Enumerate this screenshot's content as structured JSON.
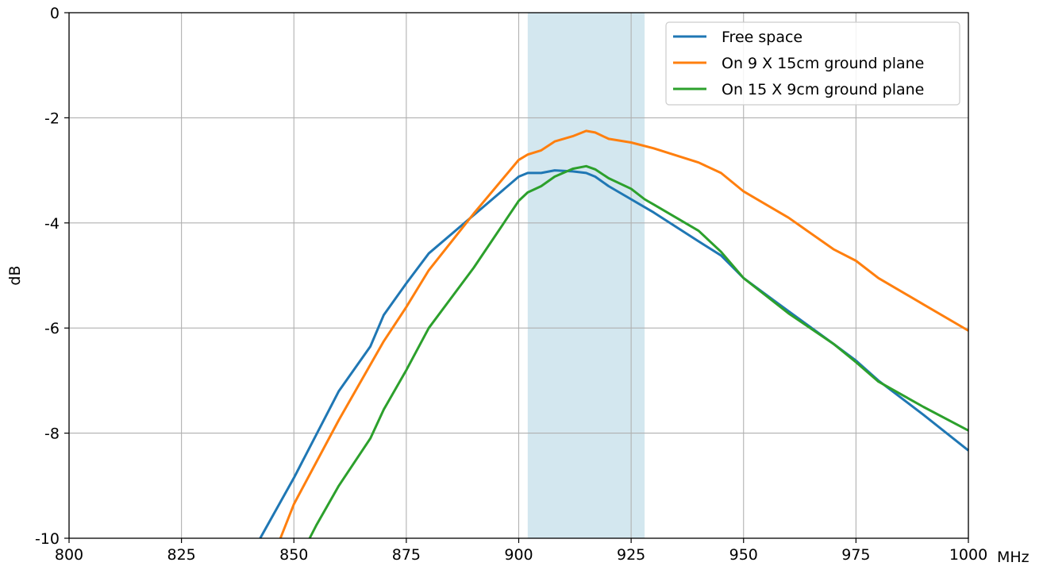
{
  "chart_data": {
    "type": "line",
    "title": "",
    "xlabel": "",
    "ylabel": "dB",
    "x_unit": "MHz",
    "xlim": [
      800,
      1000
    ],
    "ylim": [
      -10,
      0
    ],
    "x_ticks": [
      "800",
      "825",
      "850",
      "875",
      "900",
      "925",
      "950",
      "975",
      "1000"
    ],
    "x_tick_values": [
      800,
      825,
      850,
      875,
      900,
      925,
      950,
      975,
      1000
    ],
    "y_ticks": [
      "0",
      "-2",
      "-4",
      "-6",
      "-8",
      "-10"
    ],
    "y_tick_values": [
      0,
      -2,
      -4,
      -6,
      -8,
      -10
    ],
    "grid": true,
    "legend_position": "top-right",
    "highlight_band": {
      "x_start": 902,
      "x_end": 928,
      "color": "#d3e7ef"
    },
    "series": [
      {
        "name": "Free space",
        "color": "#1f77b4",
        "points": [
          [
            842.5,
            -10
          ],
          [
            850,
            -8.85
          ],
          [
            860,
            -7.2
          ],
          [
            867,
            -6.35
          ],
          [
            870,
            -5.75
          ],
          [
            875,
            -5.15
          ],
          [
            880,
            -4.58
          ],
          [
            890,
            -3.85
          ],
          [
            900,
            -3.12
          ],
          [
            902,
            -3.05
          ],
          [
            905,
            -3.05
          ],
          [
            908,
            -3.0
          ],
          [
            912,
            -3.02
          ],
          [
            915,
            -3.05
          ],
          [
            917,
            -3.12
          ],
          [
            920,
            -3.3
          ],
          [
            925,
            -3.55
          ],
          [
            930,
            -3.8
          ],
          [
            940,
            -4.35
          ],
          [
            945,
            -4.62
          ],
          [
            950,
            -5.05
          ],
          [
            960,
            -5.68
          ],
          [
            970,
            -6.3
          ],
          [
            975,
            -6.62
          ],
          [
            980,
            -7.0
          ],
          [
            990,
            -7.65
          ],
          [
            1000,
            -8.33
          ]
        ]
      },
      {
        "name": "On 9 X 15cm ground plane",
        "color": "#ff7f0e",
        "points": [
          [
            847,
            -10
          ],
          [
            850,
            -9.35
          ],
          [
            860,
            -7.75
          ],
          [
            870,
            -6.25
          ],
          [
            875,
            -5.6
          ],
          [
            880,
            -4.9
          ],
          [
            890,
            -3.82
          ],
          [
            900,
            -2.8
          ],
          [
            902,
            -2.7
          ],
          [
            905,
            -2.62
          ],
          [
            908,
            -2.45
          ],
          [
            912,
            -2.35
          ],
          [
            915,
            -2.25
          ],
          [
            917,
            -2.28
          ],
          [
            920,
            -2.4
          ],
          [
            925,
            -2.47
          ],
          [
            930,
            -2.58
          ],
          [
            940,
            -2.85
          ],
          [
            945,
            -3.05
          ],
          [
            950,
            -3.4
          ],
          [
            960,
            -3.9
          ],
          [
            970,
            -4.5
          ],
          [
            975,
            -4.72
          ],
          [
            980,
            -5.05
          ],
          [
            990,
            -5.55
          ],
          [
            1000,
            -6.05
          ]
        ]
      },
      {
        "name": "On 15 X 9cm ground plane",
        "color": "#2ca02c",
        "points": [
          [
            853.5,
            -10
          ],
          [
            855,
            -9.75
          ],
          [
            860,
            -9.0
          ],
          [
            867,
            -8.1
          ],
          [
            870,
            -7.55
          ],
          [
            875,
            -6.8
          ],
          [
            880,
            -6.0
          ],
          [
            890,
            -4.85
          ],
          [
            900,
            -3.58
          ],
          [
            902,
            -3.42
          ],
          [
            905,
            -3.3
          ],
          [
            908,
            -3.12
          ],
          [
            912,
            -2.97
          ],
          [
            915,
            -2.92
          ],
          [
            917,
            -2.98
          ],
          [
            920,
            -3.15
          ],
          [
            925,
            -3.35
          ],
          [
            928,
            -3.55
          ],
          [
            930,
            -3.65
          ],
          [
            940,
            -4.15
          ],
          [
            945,
            -4.55
          ],
          [
            950,
            -5.05
          ],
          [
            960,
            -5.72
          ],
          [
            970,
            -6.3
          ],
          [
            975,
            -6.65
          ],
          [
            980,
            -7.02
          ],
          [
            990,
            -7.5
          ],
          [
            1000,
            -7.95
          ]
        ]
      }
    ]
  }
}
